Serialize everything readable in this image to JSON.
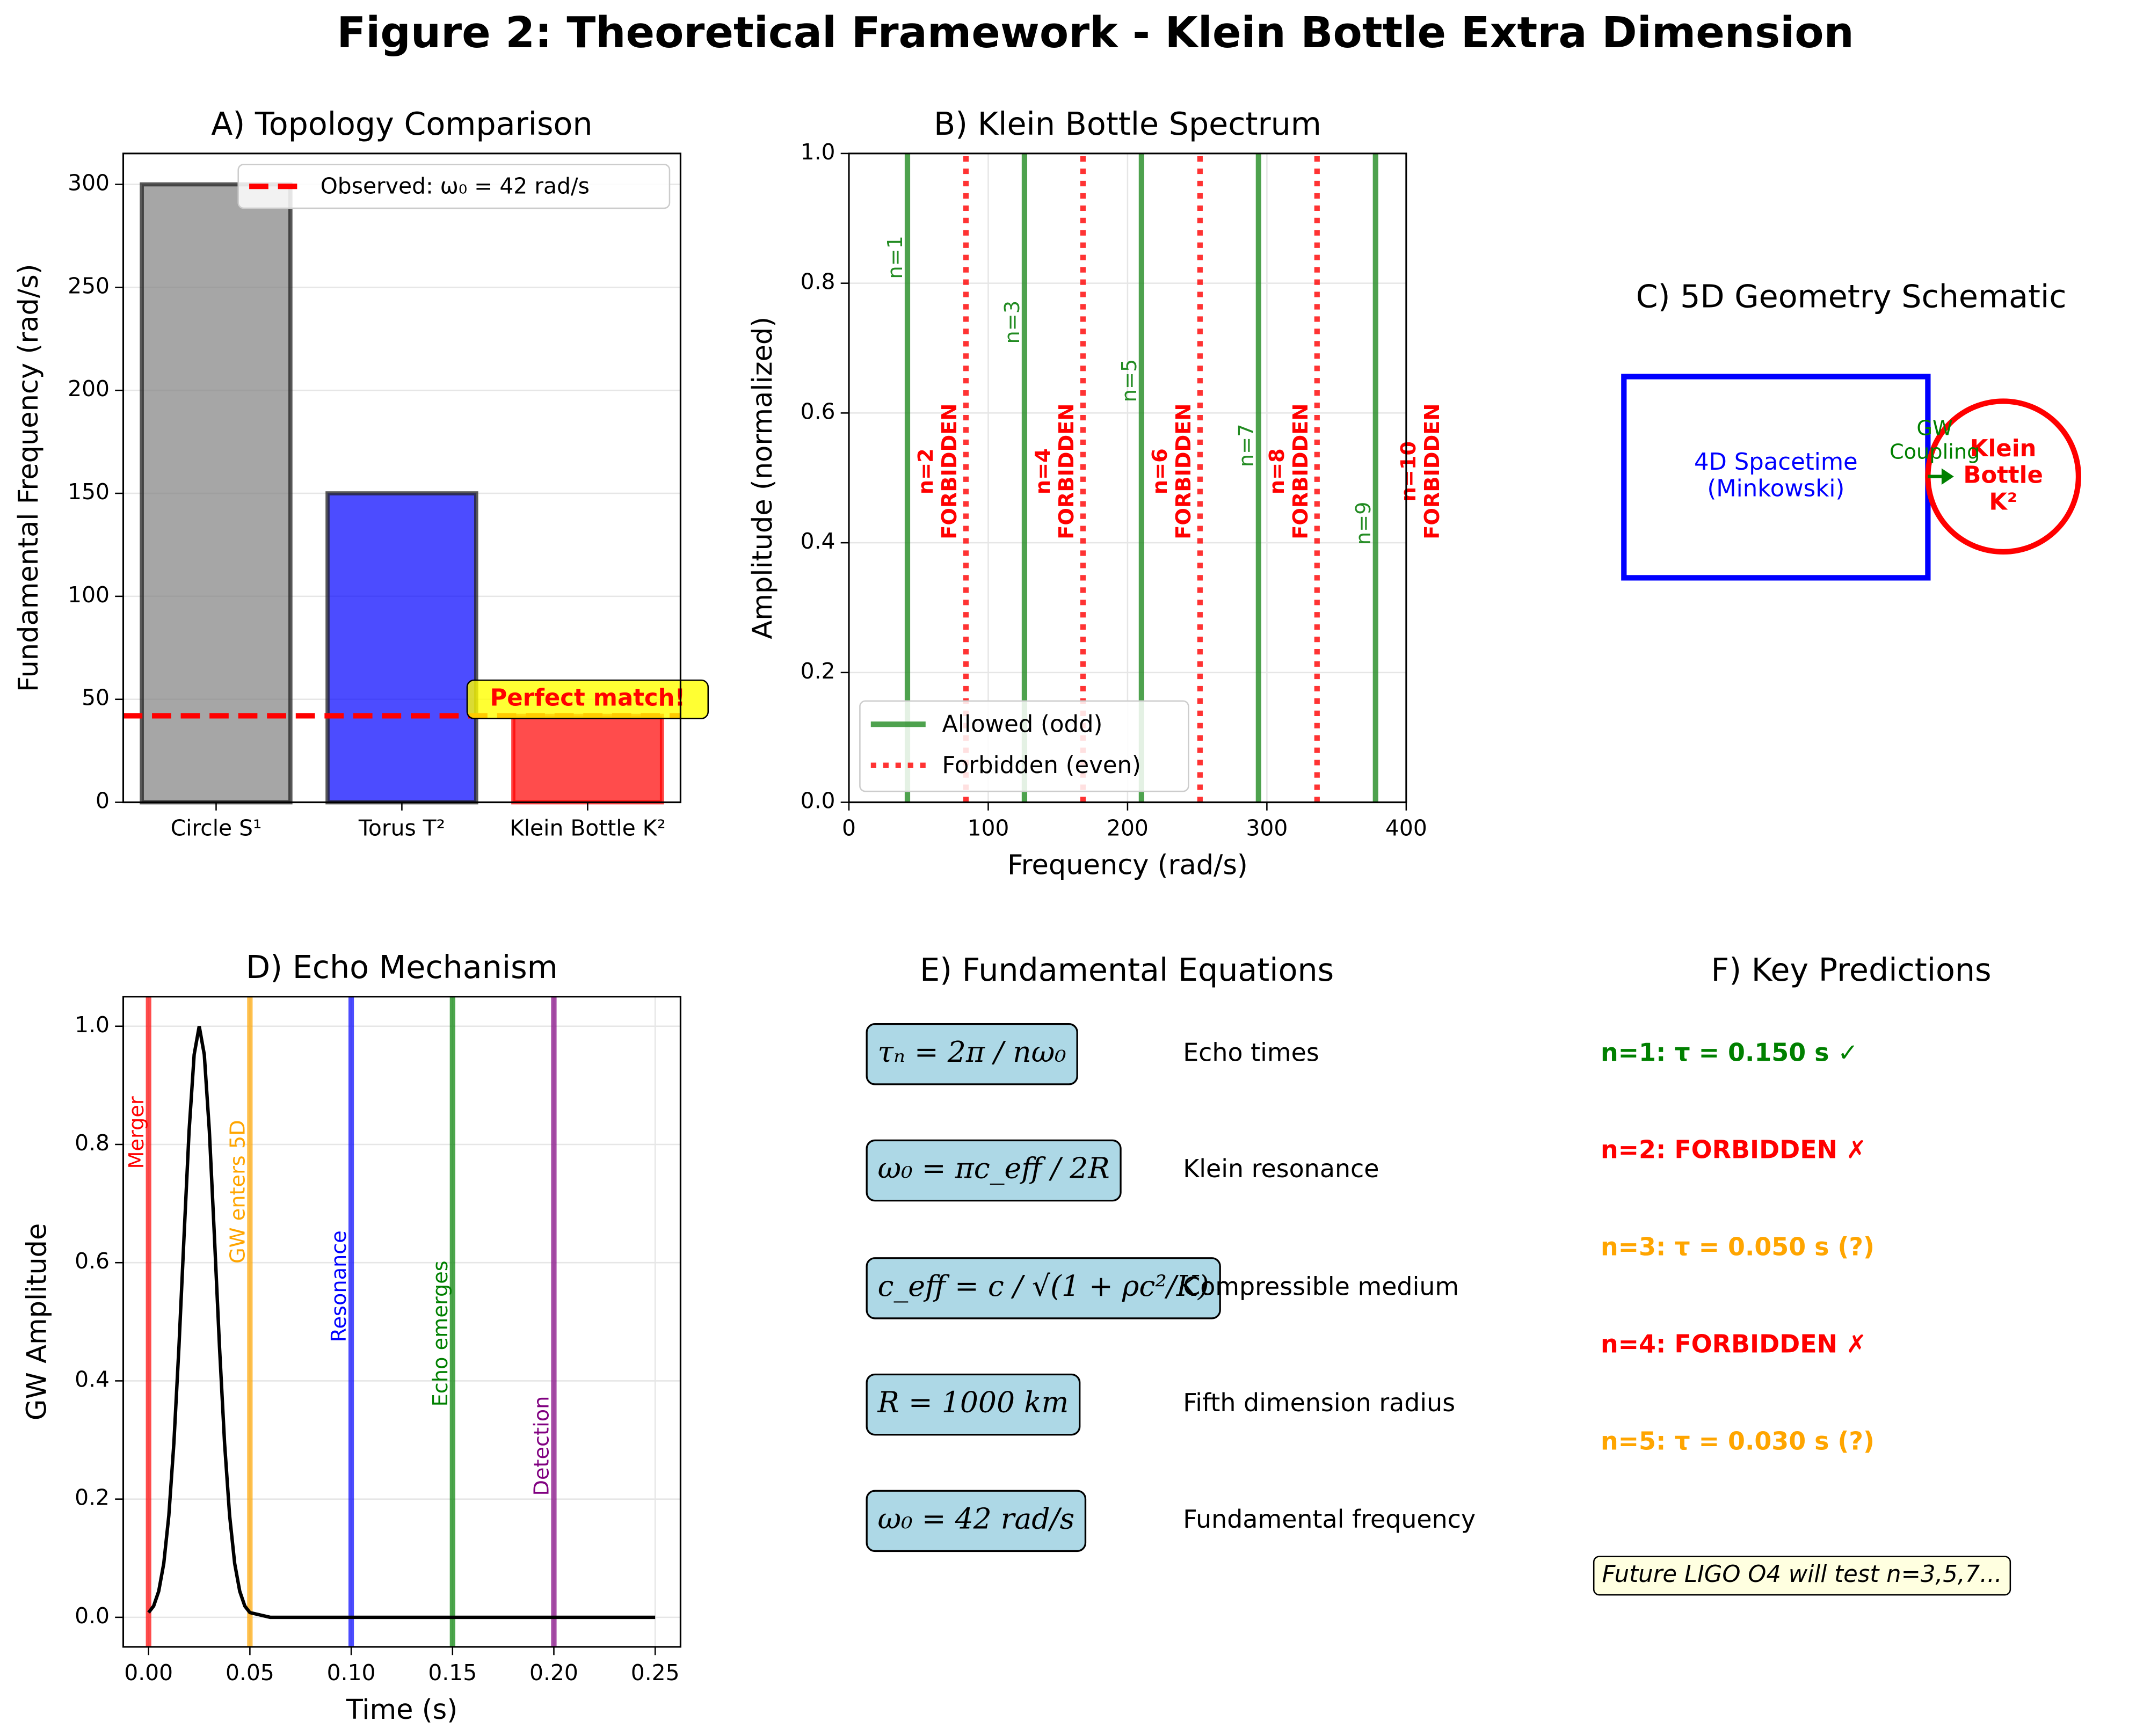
{
  "figure_title": "Figure 2: Theoretical Framework - Klein Bottle Extra Dimension",
  "chart_data": [
    {
      "type": "bar",
      "title": "A) Topology Comparison",
      "ylabel": "Fundamental Frequency (rad/s)",
      "categories": [
        "Circle S¹",
        "Torus T²",
        "Klein Bottle K²"
      ],
      "values": [
        300,
        150,
        42
      ],
      "colors": [
        "#808080",
        "#0000ff",
        "#ff0000"
      ],
      "ylim": [
        0,
        315
      ],
      "yticks": [
        0,
        50,
        100,
        150,
        200,
        250,
        300
      ],
      "grid": true,
      "reference_line": {
        "value": 42,
        "label": "Observed: ω₀ = 42 rad/s",
        "color": "#ff0000"
      },
      "annotation": "Perfect match!",
      "legend": "upper right"
    },
    {
      "type": "vlines",
      "title": "B) Klein Bottle Spectrum",
      "xlabel": "Frequency (rad/s)",
      "ylabel": "Amplitude (normalized)",
      "series": [
        {
          "name": "Allowed (odd)",
          "color": "#228b22",
          "style": "solid",
          "x": [
            42,
            126,
            210,
            294,
            378
          ],
          "labels": [
            "n=1",
            "n=3",
            "n=5",
            "n=7",
            "n=9"
          ]
        },
        {
          "name": "Forbidden (even)",
          "color": "#ff0000",
          "style": "dotted",
          "x": [
            84,
            168,
            252,
            336
          ],
          "labels": [
            "n=2\nFORBIDDEN",
            "n=4\nFORBIDDEN",
            "n=6\nFORBIDDEN",
            "n=8\nFORBIDDEN"
          ]
        }
      ],
      "extra_label": "n=10\nFORBIDDEN",
      "xlim": [
        0,
        400
      ],
      "ylim": [
        0,
        1
      ],
      "xticks": [
        0,
        100,
        200,
        300,
        400
      ],
      "yticks": [
        {
          "value": 0,
          "label": "0.0"
        },
        {
          "value": 0.2,
          "label": "0.2"
        },
        {
          "value": 0.4,
          "label": "0.4"
        },
        {
          "value": 0.6,
          "label": "0.6"
        },
        {
          "value": 0.8,
          "label": "0.8"
        },
        {
          "value": 1,
          "label": "1.0"
        }
      ],
      "grid": true,
      "legend": "lower left"
    },
    {
      "type": "line",
      "title": "D) Echo Mechanism",
      "xlabel": "Time (s)",
      "ylabel": "GW Amplitude",
      "color": "#000000",
      "x": [
        0,
        0.0025,
        0.005,
        0.0075,
        0.01,
        0.0125,
        0.015,
        0.0175,
        0.02,
        0.0225,
        0.025,
        0.0275,
        0.03,
        0.0325,
        0.035,
        0.0375,
        0.04,
        0.0425,
        0.045,
        0.0475,
        0.05,
        0.06,
        0.08,
        0.1,
        0.12,
        0.14,
        0.16,
        0.18,
        0.2,
        0.22,
        0.24,
        0.25
      ],
      "values": [
        0.008,
        0.019,
        0.044,
        0.091,
        0.172,
        0.295,
        0.458,
        0.644,
        0.823,
        0.952,
        1,
        0.952,
        0.823,
        0.644,
        0.458,
        0.295,
        0.172,
        0.091,
        0.044,
        0.019,
        0.008,
        0,
        0,
        0,
        0,
        0,
        0,
        0,
        0,
        0,
        0,
        0
      ],
      "events": {
        "x": [
          0,
          0.05,
          0.1,
          0.15,
          0.2
        ],
        "labels": [
          "Merger",
          "GW enters 5D",
          "Resonance",
          "Echo emerges",
          "Detection"
        ],
        "colors": [
          "#ff0000",
          "#ffa500",
          "#0000ff",
          "#008000",
          "#800080"
        ]
      },
      "xlim": [
        -0.0125,
        0.2625
      ],
      "ylim": [
        -0.05,
        1.05
      ],
      "xticks": [
        {
          "value": 0,
          "label": "0.00"
        },
        {
          "value": 0.05,
          "label": "0.05"
        },
        {
          "value": 0.1,
          "label": "0.10"
        },
        {
          "value": 0.15,
          "label": "0.15"
        },
        {
          "value": 0.2,
          "label": "0.20"
        },
        {
          "value": 0.25,
          "label": "0.25"
        }
      ],
      "yticks": [
        {
          "value": 0,
          "label": "0.0"
        },
        {
          "value": 0.2,
          "label": "0.2"
        },
        {
          "value": 0.4,
          "label": "0.4"
        },
        {
          "value": 0.6,
          "label": "0.6"
        },
        {
          "value": 0.8,
          "label": "0.8"
        },
        {
          "value": 1,
          "label": "1.0"
        }
      ],
      "grid": true
    }
  ],
  "schematic": {
    "title": "C) 5D Geometry Schematic",
    "spacetime": "4D Spacetime\n(Minkowski)",
    "coupling": "GW\nCoupling",
    "klein": "Klein\nBottle\nK²"
  },
  "equations": {
    "title": "E) Fundamental Equations",
    "rows": [
      {
        "equation": "τₙ = 2π / nω₀",
        "label": "Echo times"
      },
      {
        "equation": "ω₀ = πc_eff / 2R",
        "label": "Klein resonance"
      },
      {
        "equation": "c_eff = c / √(1 + ρc²/K)",
        "label": "Compressible medium"
      },
      {
        "equation": "R = 1000 km",
        "label": "Fifth dimension radius"
      },
      {
        "equation": "ω₀ = 42 rad/s",
        "label": "Fundamental frequency"
      }
    ]
  },
  "predictions": {
    "title": "F) Key Predictions",
    "items": [
      {
        "text": "n=1: τ = 0.150 s ✓",
        "color": "#008000"
      },
      {
        "text": "n=2: FORBIDDEN ✗",
        "color": "#ff0000"
      },
      {
        "text": "n=3: τ = 0.050 s (?)",
        "color": "#ffa500"
      },
      {
        "text": "n=4: FORBIDDEN ✗",
        "color": "#ff0000"
      },
      {
        "text": "n=5: τ = 0.030 s (?)",
        "color": "#ffa500"
      }
    ],
    "note": "Future LIGO O4 will test n=3,5,7..."
  }
}
